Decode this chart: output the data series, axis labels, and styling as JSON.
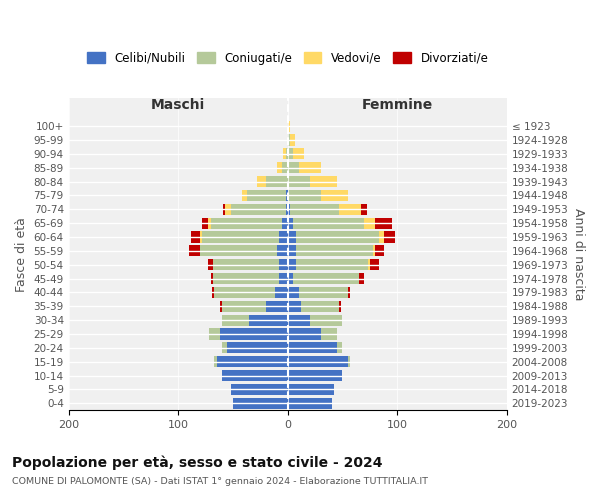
{
  "age_groups": [
    "0-4",
    "5-9",
    "10-14",
    "15-19",
    "20-24",
    "25-29",
    "30-34",
    "35-39",
    "40-44",
    "45-49",
    "50-54",
    "55-59",
    "60-64",
    "65-69",
    "70-74",
    "75-79",
    "80-84",
    "85-89",
    "90-94",
    "95-99",
    "100+"
  ],
  "birth_years": [
    "2019-2023",
    "2014-2018",
    "2009-2013",
    "2004-2008",
    "1999-2003",
    "1994-1998",
    "1989-1993",
    "1984-1988",
    "1979-1983",
    "1974-1978",
    "1969-1973",
    "1964-1968",
    "1959-1963",
    "1954-1958",
    "1949-1953",
    "1944-1948",
    "1939-1943",
    "1934-1938",
    "1929-1933",
    "1924-1928",
    "≤ 1923"
  ],
  "maschi": {
    "celibi": [
      50,
      52,
      60,
      65,
      55,
      62,
      35,
      20,
      12,
      8,
      8,
      10,
      8,
      5,
      2,
      2,
      0,
      0,
      0,
      0,
      0
    ],
    "coniugati": [
      0,
      0,
      0,
      2,
      5,
      10,
      25,
      40,
      55,
      60,
      60,
      70,
      70,
      65,
      50,
      35,
      20,
      5,
      2,
      0,
      0
    ],
    "vedovi": [
      0,
      0,
      0,
      0,
      0,
      0,
      0,
      0,
      0,
      0,
      0,
      0,
      2,
      3,
      5,
      5,
      8,
      5,
      2,
      0,
      0
    ],
    "divorziati": [
      0,
      0,
      0,
      0,
      0,
      0,
      0,
      2,
      2,
      2,
      5,
      10,
      8,
      5,
      2,
      0,
      0,
      0,
      0,
      0,
      0
    ]
  },
  "femmine": {
    "nubili": [
      40,
      42,
      50,
      55,
      45,
      30,
      20,
      12,
      10,
      5,
      8,
      8,
      8,
      5,
      2,
      0,
      0,
      0,
      0,
      0,
      0
    ],
    "coniugate": [
      0,
      0,
      0,
      2,
      5,
      15,
      30,
      35,
      45,
      60,
      65,
      70,
      75,
      65,
      45,
      30,
      20,
      10,
      5,
      2,
      0
    ],
    "vedove": [
      0,
      0,
      0,
      0,
      0,
      0,
      0,
      0,
      0,
      0,
      2,
      2,
      5,
      10,
      20,
      25,
      25,
      20,
      10,
      5,
      2
    ],
    "divorziate": [
      0,
      0,
      0,
      0,
      0,
      0,
      0,
      2,
      2,
      5,
      8,
      8,
      10,
      15,
      5,
      0,
      0,
      0,
      0,
      0,
      0
    ]
  },
  "colors": {
    "celibi": "#4472c4",
    "coniugati": "#b5c99a",
    "vedovi": "#ffd966",
    "divorziati": "#c00000"
  },
  "title": "Popolazione per età, sesso e stato civile - 2024",
  "subtitle": "COMUNE DI PALOMONTE (SA) - Dati ISTAT 1° gennaio 2024 - Elaborazione TUTTITALIA.IT",
  "xlabel_maschi": "Maschi",
  "xlabel_femmine": "Femmine",
  "ylabel": "Fasce di età",
  "ylabel_right": "Anni di nascita",
  "xlim": 200,
  "legend_labels": [
    "Celibi/Nubili",
    "Coniugati/e",
    "Vedovi/e",
    "Divorziati/e"
  ],
  "background_color": "#ffffff",
  "bar_height": 0.8
}
